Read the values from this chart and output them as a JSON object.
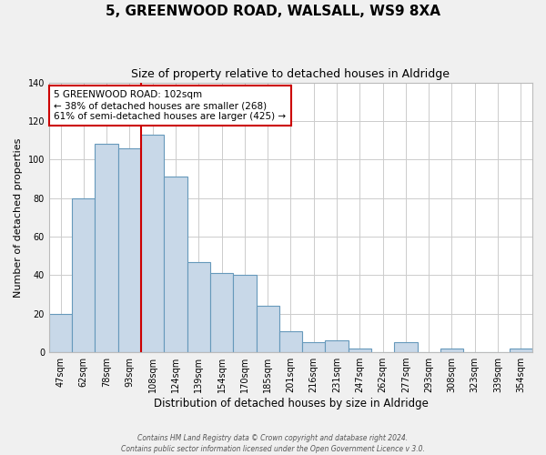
{
  "title": "5, GREENWOOD ROAD, WALSALL, WS9 8XA",
  "subtitle": "Size of property relative to detached houses in Aldridge",
  "xlabel": "Distribution of detached houses by size in Aldridge",
  "ylabel": "Number of detached properties",
  "bar_labels": [
    "47sqm",
    "62sqm",
    "78sqm",
    "93sqm",
    "108sqm",
    "124sqm",
    "139sqm",
    "154sqm",
    "170sqm",
    "185sqm",
    "201sqm",
    "216sqm",
    "231sqm",
    "247sqm",
    "262sqm",
    "277sqm",
    "293sqm",
    "308sqm",
    "323sqm",
    "339sqm",
    "354sqm"
  ],
  "bar_values": [
    20,
    80,
    108,
    106,
    113,
    91,
    47,
    41,
    40,
    24,
    11,
    5,
    6,
    2,
    0,
    5,
    0,
    2,
    0,
    0,
    2
  ],
  "bar_color": "#c8d8e8",
  "bar_edgecolor": "#6699bb",
  "ylim": [
    0,
    140
  ],
  "yticks": [
    0,
    20,
    40,
    60,
    80,
    100,
    120,
    140
  ],
  "redline_index": 3.5,
  "annotation_title": "5 GREENWOOD ROAD: 102sqm",
  "annotation_line1": "← 38% of detached houses are smaller (268)",
  "annotation_line2": "61% of semi-detached houses are larger (425) →",
  "annotation_box_color": "#ffffff",
  "annotation_box_edgecolor": "#cc0000",
  "redline_color": "#cc0000",
  "footer_line1": "Contains HM Land Registry data © Crown copyright and database right 2024.",
  "footer_line2": "Contains public sector information licensed under the Open Government Licence v 3.0.",
  "background_color": "#f0f0f0",
  "plot_background": "#ffffff",
  "grid_color": "#cccccc",
  "title_fontsize": 11,
  "subtitle_fontsize": 9,
  "ylabel_fontsize": 8,
  "xlabel_fontsize": 8.5,
  "tick_fontsize": 7,
  "annot_fontsize": 7.5,
  "footer_fontsize": 5.5
}
